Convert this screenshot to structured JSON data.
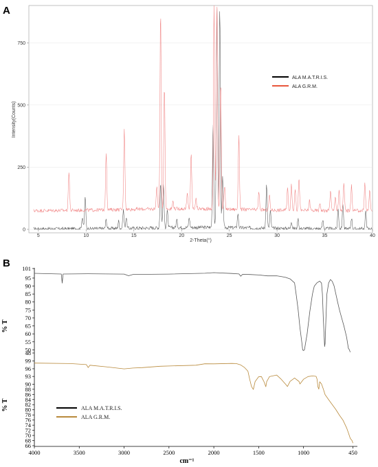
{
  "chart_data": [
    {
      "panel": "A",
      "type": "line",
      "xlabel": "2-Theta(°)",
      "ylabel": "Intensity(Counts)",
      "xlim": [
        4,
        40
      ],
      "ylim": [
        0,
        900
      ],
      "x_ticks": [
        "5",
        "10",
        "15",
        "20",
        "25",
        "30",
        "35",
        "40"
      ],
      "y_ticks": [
        "0",
        "250",
        "500",
        "750"
      ],
      "legend": {
        "placement": "right"
      },
      "series": [
        {
          "name": "ALA M.A.T.R.I.S.",
          "color": "#555555",
          "legend_color": "#000000",
          "baseline": 2,
          "peaks": [
            [
              9.6,
              48
            ],
            [
              9.9,
              130
            ],
            [
              12.1,
              35
            ],
            [
              13.4,
              30
            ],
            [
              13.9,
              75
            ],
            [
              14.2,
              45
            ],
            [
              17.8,
              180
            ],
            [
              18.1,
              170
            ],
            [
              18.5,
              70
            ],
            [
              19.5,
              30
            ],
            [
              20.8,
              40
            ],
            [
              23.3,
              420
            ],
            [
              23.7,
              900
            ],
            [
              24.0,
              900
            ],
            [
              24.3,
              200
            ],
            [
              25.9,
              55
            ],
            [
              28.9,
              175
            ],
            [
              29.3,
              70
            ],
            [
              31.5,
              30
            ],
            [
              32.2,
              40
            ],
            [
              34.8,
              35
            ],
            [
              36.4,
              80
            ],
            [
              36.9,
              100
            ],
            [
              37.8,
              45
            ],
            [
              39.3,
              70
            ]
          ]
        },
        {
          "name": "ALA G.R.M.",
          "color": "#f08080",
          "legend_color": "#e8553a",
          "baseline": 75,
          "peaks": [
            [
              8.2,
              160
            ],
            [
              12.1,
              230
            ],
            [
              14.0,
              330
            ],
            [
              17.4,
              90
            ],
            [
              17.8,
              800
            ],
            [
              18.2,
              500
            ],
            [
              19.1,
              30
            ],
            [
              20.6,
              60
            ],
            [
              21.0,
              220
            ],
            [
              21.5,
              40
            ],
            [
              23.4,
              820
            ],
            [
              23.7,
              830
            ],
            [
              24.1,
              520
            ],
            [
              24.5,
              90
            ],
            [
              26.0,
              300
            ],
            [
              28.1,
              70
            ],
            [
              29.2,
              60
            ],
            [
              31.1,
              90
            ],
            [
              31.5,
              100
            ],
            [
              31.9,
              90
            ],
            [
              32.3,
              130
            ],
            [
              33.4,
              40
            ],
            [
              34.5,
              30
            ],
            [
              35.6,
              80
            ],
            [
              36.1,
              60
            ],
            [
              36.5,
              80
            ],
            [
              37.0,
              110
            ],
            [
              37.8,
              100
            ],
            [
              39.2,
              110
            ],
            [
              39.7,
              80
            ]
          ]
        }
      ]
    },
    {
      "panel": "B",
      "type": "line",
      "xlabel": "cm⁻¹",
      "ylabel": "% T",
      "xlim": [
        4000,
        400
      ],
      "x_ticks": [
        "4000",
        "3500",
        "3000",
        "2500",
        "2000",
        "1500",
        "1000",
        "450"
      ],
      "legend": {
        "placement": "bottom-left"
      },
      "subplots": [
        {
          "ylim": [
            48,
            101
          ],
          "y_ticks": [
            "101",
            "95",
            "90",
            "85",
            "80",
            "75",
            "70",
            "65",
            "60",
            "55",
            "50",
            "48"
          ],
          "series": [
            {
              "name": "ALA M.A.T.R.I.S.",
              "color": "#555555",
              "points": [
                [
                  4000,
                  98
                ],
                [
                  3700,
                  97.6
                ],
                [
                  3690,
                  92
                ],
                [
                  3680,
                  97.5
                ],
                [
                  3400,
                  97.8
                ],
                [
                  3000,
                  97.4
                ],
                [
                  2950,
                  96.5
                ],
                [
                  2900,
                  97.3
                ],
                [
                  2500,
                  97.5
                ],
                [
                  2100,
                  98
                ],
                [
                  2000,
                  98.4
                ],
                [
                  1800,
                  98
                ],
                [
                  1720,
                  97.6
                ],
                [
                  1700,
                  96.3
                ],
                [
                  1680,
                  97.4
                ],
                [
                  1600,
                  97.2
                ],
                [
                  1500,
                  97
                ],
                [
                  1400,
                  96.5
                ],
                [
                  1300,
                  96.4
                ],
                [
                  1250,
                  96
                ],
                [
                  1200,
                  95.5
                ],
                [
                  1150,
                  94.5
                ],
                [
                  1100,
                  92
                ],
                [
                  1080,
                  84
                ],
                [
                  1060,
                  75
                ],
                [
                  1040,
                  64
                ],
                [
                  1020,
                  55
                ],
                [
                  1010,
                  50
                ],
                [
                  1000,
                  49.5
                ],
                [
                  990,
                  50
                ],
                [
                  960,
                  60
                ],
                [
                  930,
                  74
                ],
                [
                  900,
                  85
                ],
                [
                  880,
                  90
                ],
                [
                  850,
                  92
                ],
                [
                  820,
                  93
                ],
                [
                  800,
                  92
                ],
                [
                  790,
                  85
                ],
                [
                  780,
                  70
                ],
                [
                  770,
                  58
                ],
                [
                  765,
                  52
                ],
                [
                  760,
                  54
                ],
                [
                  750,
                  70
                ],
                [
                  740,
                  85
                ],
                [
                  720,
                  92
                ],
                [
                  700,
                  94
                ],
                [
                  680,
                  93
                ],
                [
                  660,
                  90
                ],
                [
                  640,
                  85
                ],
                [
                  620,
                  80
                ],
                [
                  600,
                  75
                ],
                [
                  575,
                  70
                ],
                [
                  550,
                  65
                ],
                [
                  520,
                  58
                ],
                [
                  500,
                  51
                ],
                [
                  490,
                  50
                ],
                [
                  480,
                  48.5
                ]
              ]
            }
          ]
        },
        {
          "ylim": [
            66,
            100
          ],
          "y_ticks": [
            "99",
            "96",
            "93",
            "90",
            "88",
            "86",
            "84",
            "82",
            "80",
            "78",
            "76",
            "74",
            "72",
            "70",
            "68",
            "66"
          ],
          "series": [
            {
              "name": "ALA G.R.M.",
              "color": "#b8893a",
              "points": [
                [
                  4000,
                  98.2
                ],
                [
                  3600,
                  98
                ],
                [
                  3420,
                  97.5
                ],
                [
                  3400,
                  96.5
                ],
                [
                  3380,
                  97.3
                ],
                [
                  3200,
                  96.8
                ],
                [
                  3000,
                  96
                ],
                [
                  2900,
                  96.2
                ],
                [
                  2800,
                  96.5
                ],
                [
                  2600,
                  97
                ],
                [
                  2200,
                  97.5
                ],
                [
                  2100,
                  98
                ],
                [
                  2000,
                  97.8
                ],
                [
                  1800,
                  98
                ],
                [
                  1750,
                  98
                ],
                [
                  1700,
                  97.5
                ],
                [
                  1660,
                  96.5
                ],
                [
                  1620,
                  95
                ],
                [
                  1600,
                  92
                ],
                [
                  1580,
                  89
                ],
                [
                  1560,
                  88
                ],
                [
                  1540,
                  91
                ],
                [
                  1500,
                  93
                ],
                [
                  1470,
                  93
                ],
                [
                  1440,
                  91
                ],
                [
                  1420,
                  89
                ],
                [
                  1410,
                  91
                ],
                [
                  1380,
                  93
                ],
                [
                  1300,
                  93.5
                ],
                [
                  1250,
                  92
                ],
                [
                  1200,
                  90
                ],
                [
                  1180,
                  89
                ],
                [
                  1150,
                  91
                ],
                [
                  1100,
                  92.3
                ],
                [
                  1050,
                  91
                ],
                [
                  1040,
                  90
                ],
                [
                  1000,
                  92
                ],
                [
                  950,
                  93
                ],
                [
                  900,
                  93.2
                ],
                [
                  860,
                  93
                ],
                [
                  850,
                  92
                ],
                [
                  840,
                  89
                ],
                [
                  830,
                  88
                ],
                [
                  820,
                  91
                ],
                [
                  800,
                  90
                ],
                [
                  780,
                  88
                ],
                [
                  760,
                  86
                ],
                [
                  720,
                  84
                ],
                [
                  680,
                  82
                ],
                [
                  640,
                  80
                ],
                [
                  600,
                  78
                ],
                [
                  560,
                  76
                ],
                [
                  520,
                  73
                ],
                [
                  500,
                  71
                ],
                [
                  480,
                  69
                ],
                [
                  460,
                  68
                ],
                [
                  450,
                  67
                ]
              ]
            }
          ]
        }
      ]
    }
  ]
}
